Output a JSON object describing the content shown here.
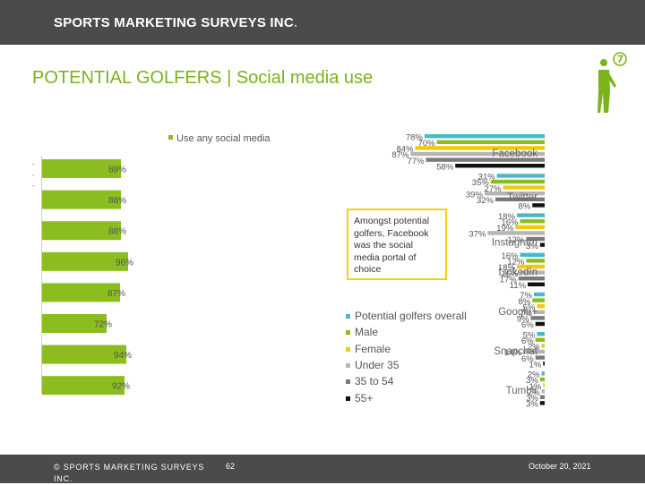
{
  "header": {
    "brand_main": "SPORTS MARKETING SURVEYS INC",
    "brand_dot": "."
  },
  "slide": {
    "title": "POTENTIAL GOLFERS | Social media use",
    "callout": "Amongst potential golfers, Facebook was the social media portal of choice"
  },
  "footer": {
    "copyright": "© SPORTS MARKETING SURVEYS INC.",
    "page_number": "62",
    "date": "October 20, 2021"
  },
  "colors": {
    "header_bg": "#4b4b4d",
    "title": "#7bb31a",
    "left_bar": "#8cbd1e",
    "callout_border": "#f5cf10"
  },
  "chart_data": [
    {
      "type": "bar",
      "orientation": "horizontal",
      "legend": [
        "Use any social media"
      ],
      "values": [
        88,
        88,
        88,
        96,
        87,
        72,
        94,
        92
      ],
      "value_labels": [
        "88%",
        "88%",
        "88%",
        "96%",
        "87%",
        "72%",
        "94%",
        "92%"
      ]
    },
    {
      "type": "bar",
      "orientation": "horizontal",
      "categories": [
        "Facebook",
        "Twitter",
        "Instagram",
        "LinkedIn",
        "Google+",
        "Snapchat",
        "Tumblr"
      ],
      "series": [
        {
          "name": "Potential golfers overall",
          "color": "#4bb8c8",
          "values": [
            78,
            31,
            18,
            16,
            7,
            5,
            2
          ]
        },
        {
          "name": "Male",
          "color": "#8cbd1e",
          "values": [
            70,
            35,
            16,
            12,
            8,
            6,
            3
          ]
        },
        {
          "name": "Female",
          "color": "#f2c80f",
          "values": [
            84,
            27,
            19,
            18,
            5,
            2,
            1
          ]
        },
        {
          "name": "Under 35",
          "color": "#b5b5b5",
          "values": [
            87,
            39,
            37,
            16,
            7,
            14,
            2
          ]
        },
        {
          "name": "35 to 54",
          "color": "#7a7a7a",
          "values": [
            77,
            32,
            12,
            17,
            9,
            6,
            3
          ]
        },
        {
          "name": "55+",
          "color": "#111111",
          "values": [
            58,
            8,
            3,
            11,
            6,
            1,
            3
          ]
        }
      ],
      "value_labels": [
        [
          "78%",
          "70%",
          "84%",
          "87%",
          "77%",
          "58%"
        ],
        [
          "31%",
          "35%",
          "27%",
          "39%",
          "32%",
          "8%"
        ],
        [
          "18%",
          "16%",
          "19%",
          "37%",
          "12%",
          "3%"
        ],
        [
          "16%",
          "12%",
          "18%",
          "16%",
          "17%",
          "11%"
        ],
        [
          "7%",
          "8%",
          "5%",
          "7%",
          "9%",
          "6%"
        ],
        [
          "5%",
          "6%",
          "2%",
          "14%",
          "6%",
          "1%"
        ],
        [
          "2%",
          "3%",
          "1%",
          "2%",
          "3%",
          "3%"
        ]
      ]
    }
  ]
}
